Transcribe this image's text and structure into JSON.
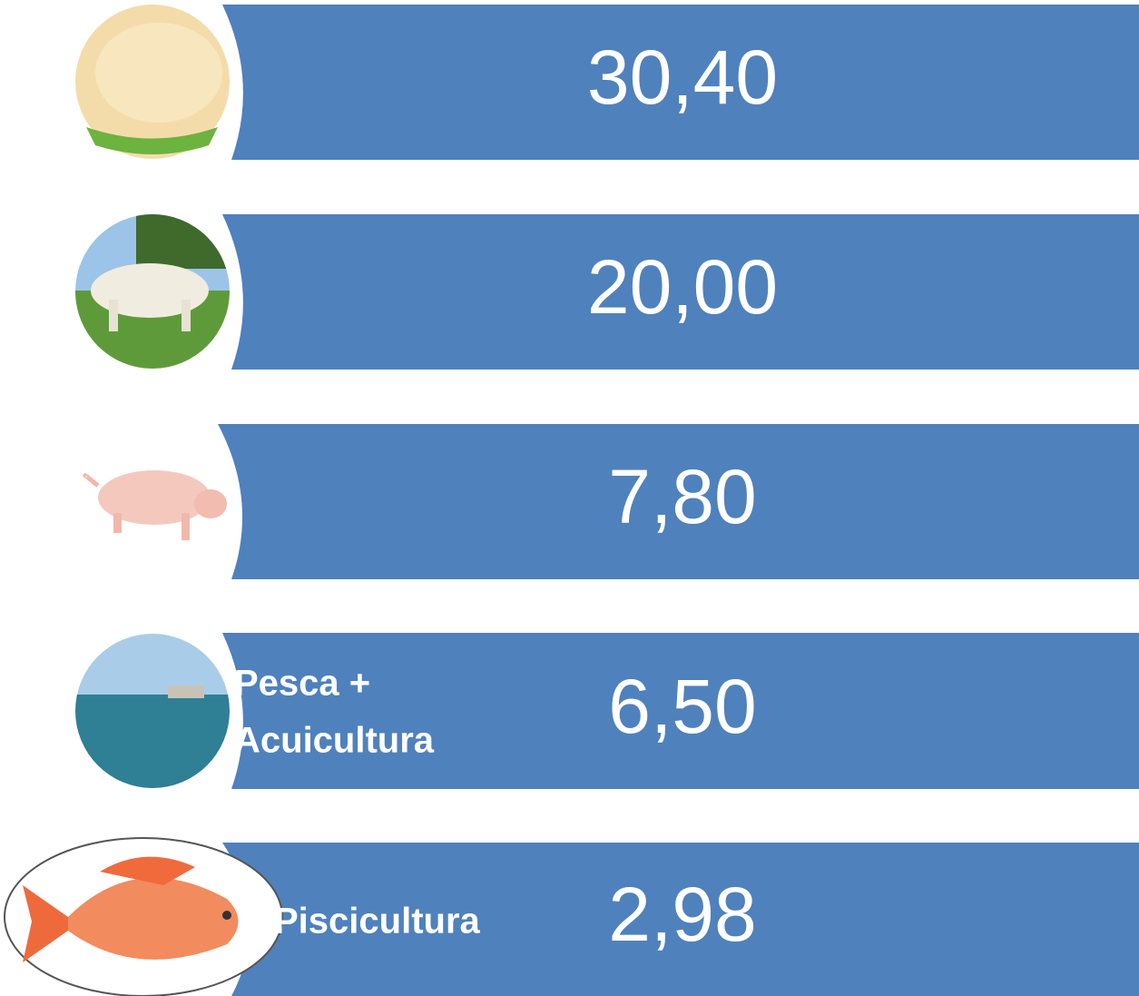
{
  "rows": [
    {
      "value": "30,40"
    },
    {
      "value": "20,00"
    },
    {
      "value": "7,80"
    },
    {
      "label": [
        "Pesca +",
        "Acuicultura"
      ],
      "value": "6,50"
    },
    {
      "label": "Piscicultura",
      "value": "2,98"
    }
  ]
}
